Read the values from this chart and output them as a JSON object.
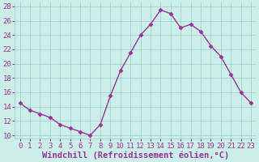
{
  "x": [
    0,
    1,
    2,
    3,
    4,
    5,
    6,
    7,
    8,
    9,
    10,
    11,
    12,
    13,
    14,
    15,
    16,
    17,
    18,
    19,
    20,
    21,
    22,
    23
  ],
  "y": [
    14.5,
    13.5,
    13.0,
    12.5,
    11.5,
    11.0,
    10.5,
    10.0,
    11.5,
    15.5,
    19.0,
    21.5,
    24.0,
    25.5,
    27.5,
    27.0,
    25.0,
    25.5,
    24.5,
    22.5,
    21.0,
    18.5,
    16.0,
    14.5
  ],
  "line_color": "#993399",
  "marker": "D",
  "markersize": 2.5,
  "linewidth": 1.0,
  "xlabel": "Windchill (Refroidissement éolien,°C)",
  "xlabel_fontsize": 7.5,
  "ylabel_ticks": [
    10,
    12,
    14,
    16,
    18,
    20,
    22,
    24,
    26,
    28
  ],
  "xlim": [
    -0.5,
    23.5
  ],
  "ylim": [
    9.5,
    28.5
  ],
  "bg_color": "#cceee8",
  "grid_color": "#99cccc",
  "tick_fontsize": 6.5,
  "xtick_labels": [
    "0",
    "1",
    "2",
    "3",
    "4",
    "5",
    "6",
    "7",
    "8",
    "9",
    "10",
    "11",
    "12",
    "13",
    "14",
    "15",
    "16",
    "17",
    "18",
    "19",
    "20",
    "21",
    "22",
    "23"
  ]
}
